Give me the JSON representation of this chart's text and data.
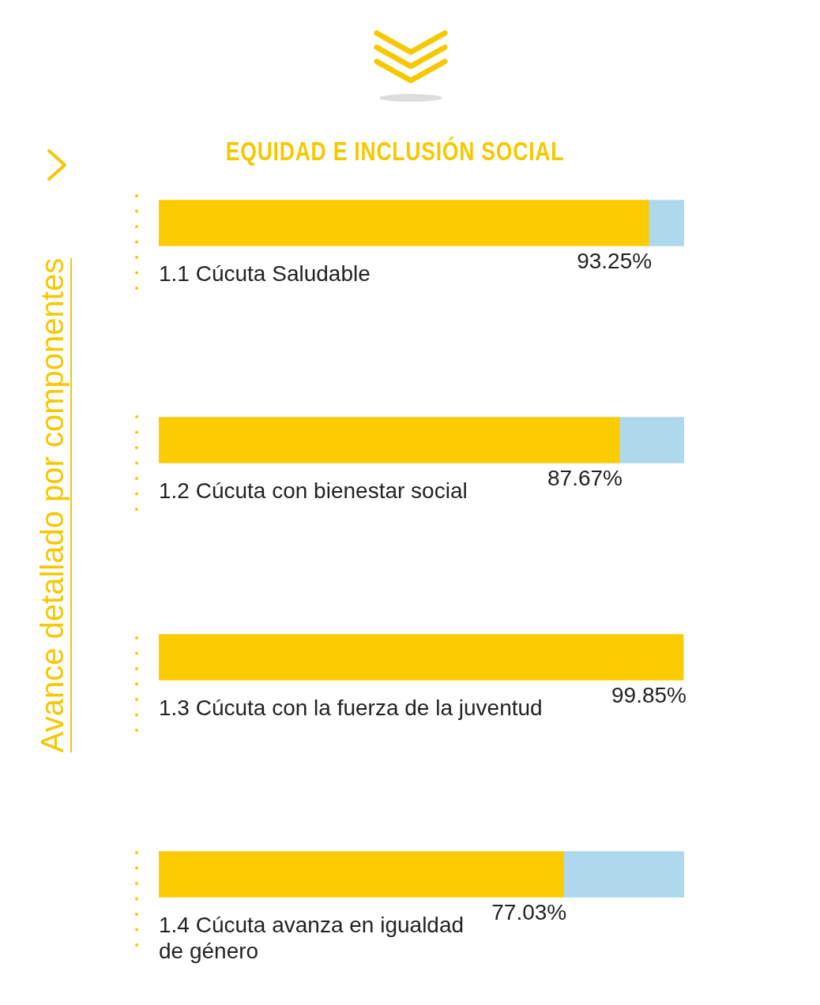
{
  "chart_data": {
    "type": "bar",
    "orientation": "horizontal",
    "stacked": true,
    "title": "EQUIDAD E INCLUSIÓN SOCIAL",
    "ylabel": "Avance detallado por componentes",
    "categories": [
      "1.1 Cúcuta Saludable",
      "1.2 Cúcuta con bienestar social",
      "1.3 Cúcuta con la fuerza de la juventud",
      "1.4 Cúcuta avanza en igualdad de género"
    ],
    "series": [
      {
        "color": "#fccb00",
        "values": [
          93.25,
          87.67,
          99.85,
          77.03
        ],
        "value_labels": [
          "93.25%",
          "87.67%",
          "99.85%",
          "77.03%"
        ]
      },
      {
        "color": "#aed8ec",
        "values": [
          6.75,
          12.33,
          null,
          22.97
        ]
      }
    ],
    "tick_labels": false,
    "grid": false,
    "legend": false
  }
}
